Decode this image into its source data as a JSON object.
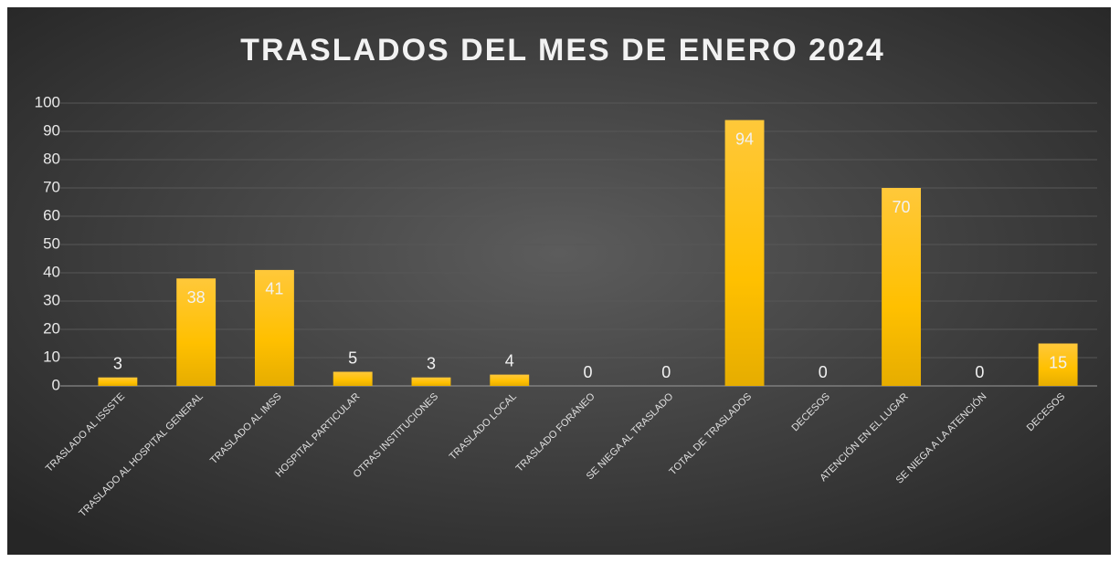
{
  "chart_data": {
    "type": "bar",
    "title": "TRASLADOS DEL MES DE ENERO 2024",
    "categories": [
      "TRASLADO AL ISSSTE",
      "TRASLADO AL HOSPITAL GENERAL",
      "TRASLADO AL IMSS",
      "HOSPITAL PARTICULAR",
      "OTRAS INSTITUCIONES",
      "TRASLADO LOCAL",
      "TRASLADO FORÁNEO",
      "SE NIEGA AL TRASLADO",
      "TOTAL DE TRASLADOS",
      "DECESOS",
      "ATENCIÓN EN EL LUGAR",
      "SE NIEGA A LA ATENCIÓN",
      "DECESOS"
    ],
    "values": [
      3,
      38,
      41,
      5,
      3,
      4,
      0,
      0,
      94,
      0,
      70,
      0,
      15
    ],
    "color": "#ffc000",
    "ylim": [
      0,
      100
    ],
    "yticks": [
      0,
      10,
      20,
      30,
      40,
      50,
      60,
      70,
      80,
      90,
      100
    ],
    "grid": true
  }
}
